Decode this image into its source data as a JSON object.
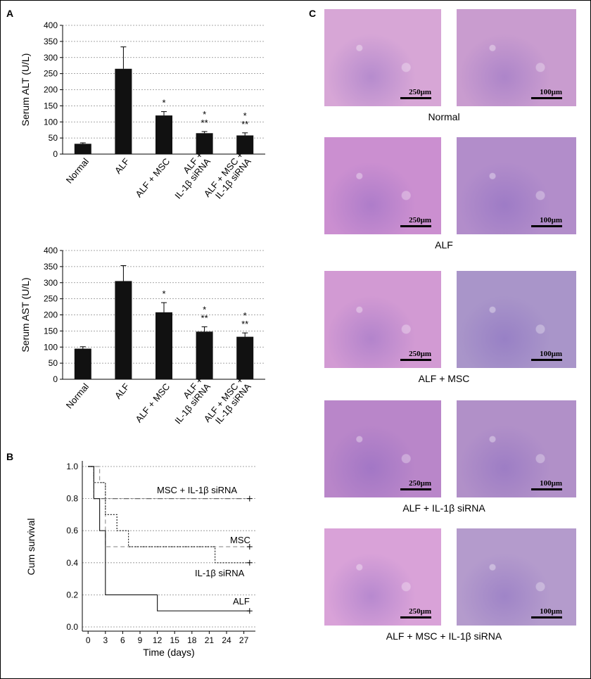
{
  "panels": {
    "a": "A",
    "b": "B",
    "c": "C"
  },
  "chart_data": [
    {
      "type": "bar",
      "panel": "A",
      "ylabel": "Serum ALT (U/L)",
      "ylim": [
        0,
        400
      ],
      "yticks": [
        0,
        50,
        100,
        150,
        200,
        250,
        300,
        350,
        400
      ],
      "grid": true,
      "categories": [
        "Normal",
        "ALF",
        "ALF + MSC",
        "ALF +|IL-1β siRNA",
        "ALF + MSC +|IL-1β siRNA"
      ],
      "values": [
        32,
        265,
        120,
        65,
        58
      ],
      "errors": [
        3,
        68,
        12,
        5,
        8
      ],
      "annotations": [
        "",
        "",
        "*",
        "*|**",
        "*|**"
      ]
    },
    {
      "type": "bar",
      "panel": "A",
      "ylabel": "Serum AST (U/L)",
      "ylim": [
        0,
        400
      ],
      "yticks": [
        0,
        50,
        100,
        150,
        200,
        250,
        300,
        350,
        400
      ],
      "grid": true,
      "categories": [
        "Normal",
        "ALF",
        "ALF + MSC",
        "ALF +|IL-1β siRNA",
        "ALF + MSC +|IL-1β siRNA"
      ],
      "values": [
        95,
        305,
        208,
        148,
        132
      ],
      "errors": [
        6,
        48,
        30,
        15,
        12
      ],
      "annotations": [
        "",
        "",
        "*",
        "*|**",
        "*|**"
      ]
    },
    {
      "type": "line",
      "panel": "B",
      "xlabel": "Time (days)",
      "ylabel": "Cum survival",
      "xlim": [
        -1,
        29
      ],
      "ylim": [
        0,
        1
      ],
      "xticks": [
        0,
        3,
        6,
        9,
        12,
        15,
        18,
        21,
        24,
        27
      ],
      "yticks": [
        "0.0",
        "0.2",
        "0.4",
        "0.6",
        "0.8",
        "1.0"
      ],
      "grid": true,
      "series": [
        {
          "name": "MSC + IL-1β siRNA",
          "style": "dashdot",
          "color": "#666666",
          "x": [
            0,
            1,
            1,
            3,
            3,
            28
          ],
          "y": [
            1.0,
            1.0,
            0.8,
            0.8,
            0.8,
            0.8
          ],
          "censor": [
            28,
            0.8
          ]
        },
        {
          "name": "MSC",
          "style": "dashed",
          "color": "#999999",
          "x": [
            0,
            2,
            2,
            3,
            3,
            28
          ],
          "y": [
            1.0,
            1.0,
            0.9,
            0.9,
            0.5,
            0.5
          ],
          "censor": [
            28,
            0.5
          ]
        },
        {
          "name": "IL-1β siRNA",
          "style": "dotted",
          "color": "#222222",
          "x": [
            0,
            1,
            1,
            3,
            3,
            5,
            5,
            7,
            7,
            22,
            22,
            28
          ],
          "y": [
            1.0,
            1.0,
            0.9,
            0.9,
            0.7,
            0.7,
            0.6,
            0.6,
            0.5,
            0.5,
            0.4,
            0.4
          ],
          "censor": [
            28,
            0.4
          ]
        },
        {
          "name": "ALF",
          "style": "solid",
          "color": "#222222",
          "x": [
            0,
            1,
            1,
            2,
            2,
            3,
            3,
            12,
            12,
            28
          ],
          "y": [
            1.0,
            1.0,
            0.8,
            0.8,
            0.6,
            0.6,
            0.2,
            0.2,
            0.1,
            0.1
          ],
          "censor": [
            28,
            0.1
          ]
        }
      ]
    }
  ],
  "micrographs": [
    {
      "caption": "Normal",
      "left_scale": "250μm",
      "right_scale": "100μm",
      "left_color": "#d7a6d6",
      "right_color": "#c99ccf"
    },
    {
      "caption": "ALF",
      "left_scale": "250μm",
      "right_scale": "100μm",
      "left_color": "#cb8fd0",
      "right_color": "#b28dca"
    },
    {
      "caption": "ALF + MSC",
      "left_scale": "250μm",
      "right_scale": "100μm",
      "left_color": "#d29ad3",
      "right_color": "#a995c9"
    },
    {
      "caption": "ALF + IL-1β siRNA",
      "left_scale": "250μm",
      "right_scale": "100μm",
      "left_color": "#b986c9",
      "right_color": "#b190c8"
    },
    {
      "caption": "ALF + MSC + IL-1β siRNA",
      "left_scale": "250μm",
      "right_scale": "100μm",
      "left_color": "#d9a2d8",
      "right_color": "#b49bcc"
    }
  ]
}
